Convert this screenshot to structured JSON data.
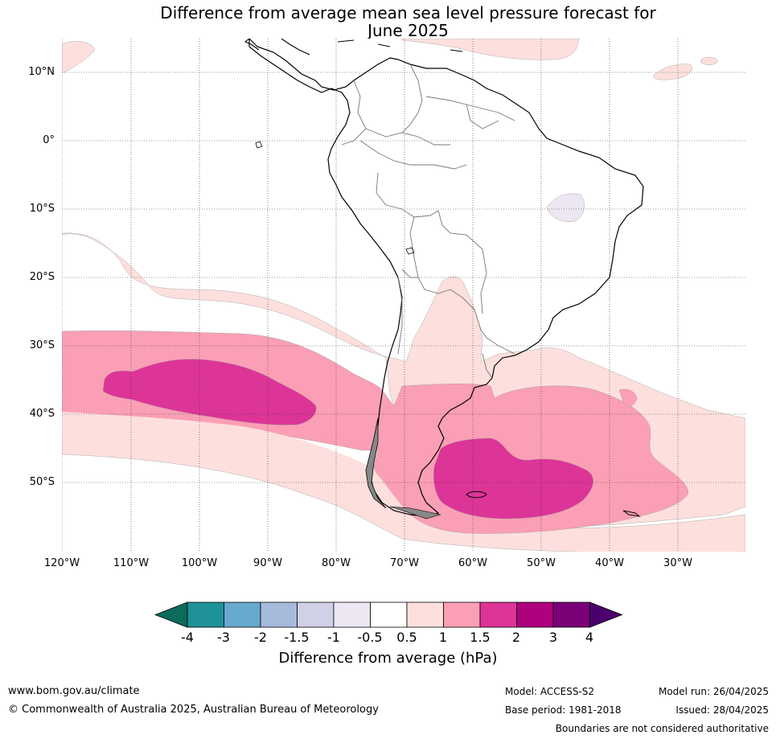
{
  "title_line1": "Difference from average mean sea level pressure forecast for",
  "title_line2": "June 2025",
  "latitudes": [
    "10°N",
    "0°",
    "10°S",
    "20°S",
    "30°S",
    "40°S",
    "50°S"
  ],
  "longitudes": [
    "120°W",
    "110°W",
    "100°W",
    "90°W",
    "80°W",
    "70°W",
    "60°W",
    "50°W",
    "40°W",
    "30°W"
  ],
  "colorbar": {
    "title": "Difference from average (hPa)",
    "ticks": [
      "-4",
      "-3",
      "-2",
      "-1.5",
      "-1",
      "-0.5",
      "0.5",
      "1",
      "1.5",
      "2",
      "3",
      "4"
    ],
    "colors": [
      "#1f9198",
      "#66a9cf",
      "#a6bbdb",
      "#d0d1e6",
      "#ece7f2",
      "#ffffff",
      "#fde0dd",
      "#fa9fb5",
      "#dd3497",
      "#ae017e",
      "#7a0177"
    ],
    "low_extend_color": "#0d6b5c",
    "high_extend_color": "#49006a"
  },
  "footer": {
    "website": "www.bom.gov.au/climate",
    "copyright": "© Commonwealth of Australia 2025, Australian Bureau of Meteorology",
    "model": "Model: ACCESS-S2",
    "base_period": "Base period: 1981-2018",
    "model_run": "Model run: 26/04/2025",
    "issued": "Issued: 28/04/2025",
    "disclaimer": "Boundaries are not considered authoritative"
  }
}
